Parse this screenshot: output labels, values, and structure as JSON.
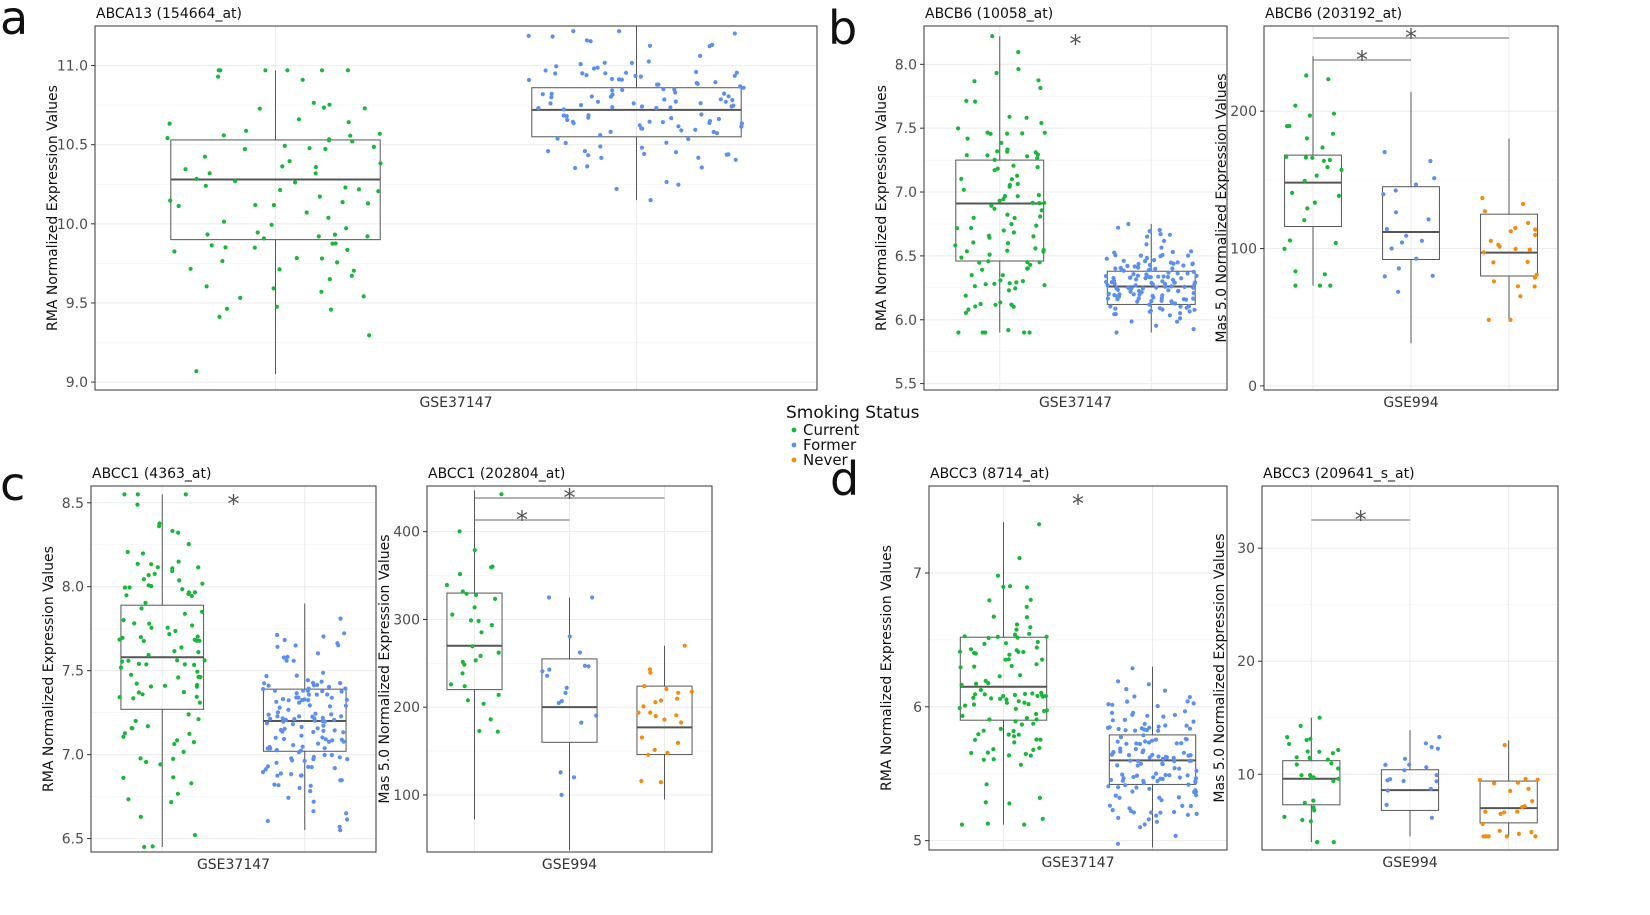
{
  "colors": {
    "Current": "#17b83a",
    "Former": "#5b8ff0",
    "Never": "#f58a0b"
  },
  "legend": {
    "title": "Smoking Status",
    "items": [
      {
        "label": "Current",
        "color": "#17b83a"
      },
      {
        "label": "Former",
        "color": "#5b8ff0"
      },
      {
        "label": "Never",
        "color": "#f58a0b"
      }
    ]
  },
  "panel_letters": [
    "a",
    "b",
    "c",
    "d"
  ],
  "chart_data": [
    {
      "type": "box",
      "panel": "a",
      "title": "ABCA13 (154664_at)",
      "ylabel": "RMA Normalized Expression Values",
      "xlabel": "GSE37147",
      "ylim": [
        8.95,
        11.25
      ],
      "yticks": [
        9.0,
        9.5,
        10.0,
        10.5,
        11.0
      ],
      "grid": true,
      "groups": [
        {
          "name": "Current",
          "min": 9.05,
          "q1": 9.9,
          "median": 10.28,
          "q3": 10.53,
          "max": 10.97,
          "n": 90
        },
        {
          "name": "Former",
          "min": 10.15,
          "q1": 10.55,
          "median": 10.72,
          "q3": 10.86,
          "max": 11.25,
          "n": 120
        }
      ],
      "significance": []
    },
    {
      "type": "box",
      "panel": "b",
      "title": "ABCB6 (10058_at)",
      "ylabel": "RMA Normalized Expression Values",
      "xlabel": "GSE37147",
      "ylim": [
        5.45,
        8.3
      ],
      "yticks": [
        5.5,
        6.0,
        6.5,
        7.0,
        7.5,
        8.0
      ],
      "grid": true,
      "groups": [
        {
          "name": "Current",
          "min": 5.9,
          "q1": 6.46,
          "median": 6.91,
          "q3": 7.25,
          "max": 8.22,
          "n": 110
        },
        {
          "name": "Former",
          "min": 5.9,
          "q1": 6.12,
          "median": 6.26,
          "q3": 6.38,
          "max": 6.75,
          "n": 140
        }
      ],
      "significance": [
        {
          "label": "*",
          "type": "star"
        }
      ]
    },
    {
      "type": "box",
      "panel": "b",
      "title": "ABCB6 (203192_at)",
      "ylabel": "Mas 5.0 Normalized Expression Values",
      "xlabel": "GSE994",
      "ylim": [
        -3,
        262
      ],
      "yticks": [
        0,
        100,
        200
      ],
      "grid": true,
      "groups": [
        {
          "name": "Current",
          "min": 73,
          "q1": 116,
          "median": 148,
          "q3": 168,
          "max": 240,
          "n": 32
        },
        {
          "name": "Former",
          "min": 31,
          "q1": 92,
          "median": 112,
          "q3": 145,
          "max": 214,
          "n": 18
        },
        {
          "name": "Never",
          "min": 48,
          "q1": 80,
          "median": 97,
          "q3": 125,
          "max": 180,
          "n": 24
        }
      ],
      "significance": [
        {
          "label": "*",
          "from": 0,
          "to": 1
        },
        {
          "label": "*",
          "from": 0,
          "to": 2
        }
      ]
    },
    {
      "type": "box",
      "panel": "c",
      "title": "ABCC1 (4363_at)",
      "ylabel": "RMA Normalized Expression Values",
      "xlabel": "GSE37147",
      "ylim": [
        6.42,
        8.6
      ],
      "yticks": [
        6.5,
        7.0,
        7.5,
        8.0,
        8.5
      ],
      "grid": true,
      "groups": [
        {
          "name": "Current",
          "min": 6.45,
          "q1": 7.27,
          "median": 7.58,
          "q3": 7.89,
          "max": 8.55,
          "n": 110
        },
        {
          "name": "Former",
          "min": 6.55,
          "q1": 7.02,
          "median": 7.2,
          "q3": 7.39,
          "max": 7.9,
          "n": 140
        }
      ],
      "significance": [
        {
          "label": "*",
          "type": "star"
        }
      ]
    },
    {
      "type": "box",
      "panel": "c",
      "title": "ABCC1 (202804_at)",
      "ylabel": "Mas 5.0 Normalized Expression Values",
      "xlabel": "GSE994",
      "ylim": [
        35,
        452
      ],
      "yticks": [
        100,
        200,
        300,
        400
      ],
      "grid": true,
      "groups": [
        {
          "name": "Current",
          "min": 72,
          "q1": 220,
          "median": 270,
          "q3": 330,
          "max": 447,
          "n": 32
        },
        {
          "name": "Former",
          "min": 37,
          "q1": 160,
          "median": 200,
          "q3": 255,
          "max": 325,
          "n": 18
        },
        {
          "name": "Never",
          "min": 95,
          "q1": 146,
          "median": 177,
          "q3": 224,
          "max": 270,
          "n": 24
        }
      ],
      "significance": [
        {
          "label": "*",
          "from": 0,
          "to": 1
        },
        {
          "label": "*",
          "from": 0,
          "to": 2
        }
      ]
    },
    {
      "type": "box",
      "panel": "d",
      "title": "ABCC3 (8714_at)",
      "ylabel": "RMA Normalized Expression Values",
      "xlabel": "GSE37147",
      "ylim": [
        4.93,
        7.65
      ],
      "yticks": [
        5,
        6,
        7
      ],
      "grid": true,
      "groups": [
        {
          "name": "Current",
          "min": 5.12,
          "q1": 5.9,
          "median": 6.15,
          "q3": 6.52,
          "max": 7.38,
          "n": 110
        },
        {
          "name": "Former",
          "min": 4.95,
          "q1": 5.42,
          "median": 5.6,
          "q3": 5.79,
          "max": 6.3,
          "n": 140
        }
      ],
      "significance": [
        {
          "label": "*",
          "type": "star"
        }
      ]
    },
    {
      "type": "box",
      "panel": "d",
      "title": "ABCC3 (209641_s_at)",
      "ylabel": "Mas 5.0 Normalized Expression Values",
      "xlabel": "GSE994",
      "ylim": [
        3.3,
        35.5
      ],
      "yticks": [
        10,
        20,
        30
      ],
      "grid": true,
      "groups": [
        {
          "name": "Current",
          "min": 4.0,
          "q1": 7.3,
          "median": 9.6,
          "q3": 11.2,
          "max": 15.0,
          "n": 32
        },
        {
          "name": "Former",
          "min": 4.5,
          "q1": 6.8,
          "median": 8.6,
          "q3": 10.4,
          "max": 13.9,
          "n": 18
        },
        {
          "name": "Never",
          "min": 4.5,
          "q1": 5.7,
          "median": 7.0,
          "q3": 9.4,
          "max": 13.0,
          "n": 24
        }
      ],
      "significance": [
        {
          "label": "*",
          "from": 0,
          "to": 1
        }
      ]
    }
  ]
}
